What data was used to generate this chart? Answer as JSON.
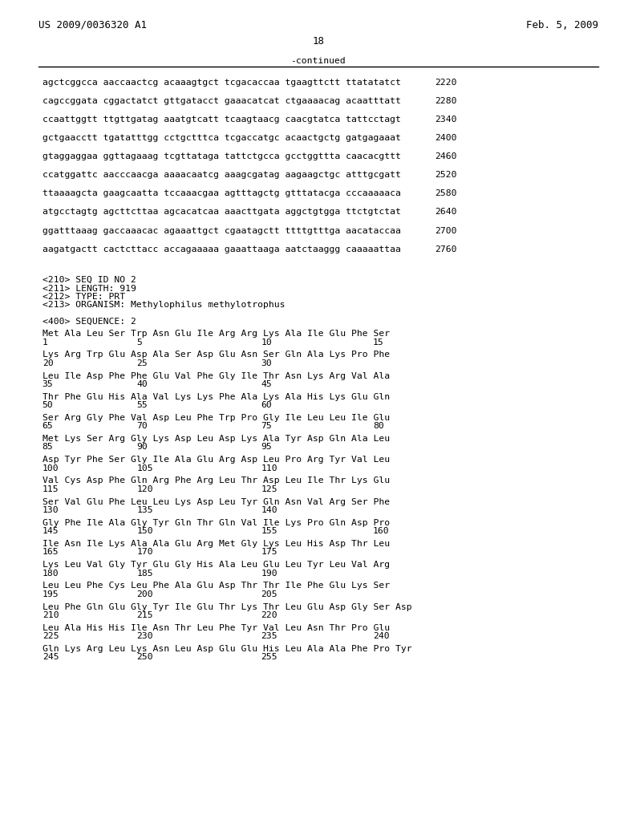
{
  "header_left": "US 2009/0036320 A1",
  "header_right": "Feb. 5, 2009",
  "page_number": "18",
  "continued_label": "-continued",
  "background_color": "#ffffff",
  "text_color": "#000000",
  "dna_lines": [
    [
      "agctcggcca aaccaactcg acaaagtgct tcgacaccaa tgaagttctt ttatatatct",
      "2220"
    ],
    [
      "cagccggata cggactatct gttgatacct gaaacatcat ctgaaaacag acaatttatt",
      "2280"
    ],
    [
      "ccaattggtt ttgttgatag aaatgtcatt tcaagtaacg caacgtatca tattcctagt",
      "2340"
    ],
    [
      "gctgaacctt tgatatttgg cctgctttca tcgaccatgc acaactgctg gatgagaaat",
      "2400"
    ],
    [
      "gtaggaggaa ggttagaaag tcgttataga tattctgcca gcctggttta caacacgttt",
      "2460"
    ],
    [
      "ccatggattc aacccaacga aaaacaatcg aaagcgatag aagaagctgc atttgcgatt",
      "2520"
    ],
    [
      "ttaaaagcta gaagcaatta tccaaacgaa agtttagctg gtttatacga cccaaaaaca",
      "2580"
    ],
    [
      "atgcctagtg agcttcttaa agcacatcaa aaacttgata aggctgtgga ttctgtctat",
      "2640"
    ],
    [
      "ggatttaaag gaccaaacac agaaattgct cgaatagctt ttttgtttga aacataccaa",
      "2700"
    ],
    [
      "aagatgactt cactcttacc accagaaaaa gaaattaaga aatctaaggg caaaaattaa",
      "2760"
    ]
  ],
  "seq_info_lines": [
    "<210> SEQ ID NO 2",
    "<211> LENGTH: 919",
    "<212> TYPE: PRT",
    "<213> ORGANISM: Methylophilus methylotrophus"
  ],
  "sequence_header": "<400> SEQUENCE: 2",
  "protein_lines": [
    {
      "aa": "Met Ala Leu Ser Trp Asn Glu Ile Arg Arg Lys Ala Ile Glu Phe Ser",
      "nums": [
        [
          "1",
          "n1"
        ],
        [
          "5",
          "n5"
        ],
        [
          "10",
          "n10"
        ],
        [
          "15",
          "n15"
        ]
      ]
    },
    {
      "aa": "Lys Arg Trp Glu Asp Ala Ser Asp Glu Asn Ser Gln Ala Lys Pro Phe",
      "nums": [
        [
          "20",
          "n1"
        ],
        [
          "25",
          "n5"
        ],
        [
          "30",
          "n10"
        ]
      ]
    },
    {
      "aa": "Leu Ile Asp Phe Phe Glu Val Phe Gly Ile Thr Asn Lys Arg Val Ala",
      "nums": [
        [
          "35",
          "n1"
        ],
        [
          "40",
          "n5"
        ],
        [
          "45",
          "n10"
        ]
      ]
    },
    {
      "aa": "Thr Phe Glu His Ala Val Lys Lys Phe Ala Lys Ala His Lys Glu Gln",
      "nums": [
        [
          "50",
          "n1"
        ],
        [
          "55",
          "n5"
        ],
        [
          "60",
          "n10"
        ]
      ]
    },
    {
      "aa": "Ser Arg Gly Phe Val Asp Leu Phe Trp Pro Gly Ile Leu Leu Ile Glu",
      "nums": [
        [
          "65",
          "n1"
        ],
        [
          "70",
          "n5"
        ],
        [
          "75",
          "n10"
        ],
        [
          "80",
          "n15"
        ]
      ]
    },
    {
      "aa": "Met Lys Ser Arg Gly Lys Asp Leu Asp Lys Ala Tyr Asp Gln Ala Leu",
      "nums": [
        [
          "85",
          "n1"
        ],
        [
          "90",
          "n5"
        ],
        [
          "95",
          "n10"
        ]
      ]
    },
    {
      "aa": "Asp Tyr Phe Ser Gly Ile Ala Glu Arg Asp Leu Pro Arg Tyr Val Leu",
      "nums": [
        [
          "100",
          "n1"
        ],
        [
          "105",
          "n5"
        ],
        [
          "110",
          "n10"
        ]
      ]
    },
    {
      "aa": "Val Cys Asp Phe Gln Arg Phe Arg Leu Thr Asp Leu Ile Thr Lys Glu",
      "nums": [
        [
          "115",
          "n1"
        ],
        [
          "120",
          "n5"
        ],
        [
          "125",
          "n10"
        ]
      ]
    },
    {
      "aa": "Ser Val Glu Phe Leu Leu Lys Asp Leu Tyr Gln Asn Val Arg Ser Phe",
      "nums": [
        [
          "130",
          "n1"
        ],
        [
          "135",
          "n5"
        ],
        [
          "140",
          "n10"
        ]
      ]
    },
    {
      "aa": "Gly Phe Ile Ala Gly Tyr Gln Thr Gln Val Ile Lys Pro Gln Asp Pro",
      "nums": [
        [
          "145",
          "n1"
        ],
        [
          "150",
          "n5"
        ],
        [
          "155",
          "n10"
        ],
        [
          "160",
          "n15"
        ]
      ]
    },
    {
      "aa": "Ile Asn Ile Lys Ala Ala Glu Arg Met Gly Lys Leu His Asp Thr Leu",
      "nums": [
        [
          "165",
          "n1"
        ],
        [
          "170",
          "n5"
        ],
        [
          "175",
          "n10"
        ]
      ]
    },
    {
      "aa": "Lys Leu Val Gly Tyr Glu Gly His Ala Leu Glu Leu Tyr Leu Val Arg",
      "nums": [
        [
          "180",
          "n1"
        ],
        [
          "185",
          "n5"
        ],
        [
          "190",
          "n10"
        ]
      ]
    },
    {
      "aa": "Leu Leu Phe Cys Leu Phe Ala Glu Asp Thr Thr Ile Phe Glu Lys Ser",
      "nums": [
        [
          "195",
          "n1"
        ],
        [
          "200",
          "n5"
        ],
        [
          "205",
          "n10"
        ]
      ]
    },
    {
      "aa": "Leu Phe Gln Glu Gly Tyr Ile Glu Thr Lys Thr Leu Glu Asp Gly Ser Asp",
      "nums": [
        [
          "210",
          "n1"
        ],
        [
          "215",
          "n5"
        ],
        [
          "220",
          "n10"
        ]
      ]
    },
    {
      "aa": "Leu Ala His His Ile Asn Thr Leu Phe Tyr Val Leu Asn Thr Pro Glu",
      "nums": [
        [
          "225",
          "n1"
        ],
        [
          "230",
          "n5"
        ],
        [
          "235",
          "n10"
        ],
        [
          "240",
          "n15"
        ]
      ]
    },
    {
      "aa": "Gln Lys Arg Leu Lys Asn Leu Asp Glu Glu His Leu Ala Ala Phe Pro Tyr",
      "nums": [
        [
          "245",
          "n1"
        ],
        [
          "250",
          "n5"
        ],
        [
          "255",
          "n10"
        ]
      ]
    }
  ],
  "num_x": {
    "n1": 68,
    "n5": 220,
    "n10": 420,
    "n15": 600
  }
}
